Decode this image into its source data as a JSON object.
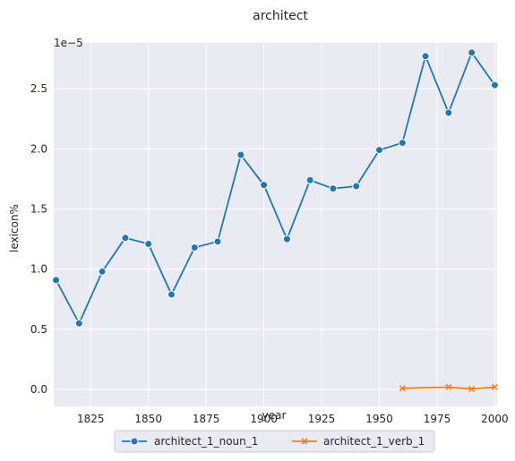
{
  "chart_data": {
    "type": "line",
    "title": "architect",
    "xlabel": "year",
    "ylabel": "lexicon%",
    "y_offset_label": "1e−5",
    "xlim": [
      1809,
      2001
    ],
    "ylim": [
      -0.14,
      2.88
    ],
    "x_ticks": [
      1825,
      1850,
      1875,
      1900,
      1925,
      1950,
      1975,
      2000
    ],
    "y_ticks": [
      0.0,
      0.5,
      1.0,
      1.5,
      2.0,
      2.5
    ],
    "y_tick_labels": [
      "0.0",
      "0.5",
      "1.0",
      "1.5",
      "2.0",
      "2.5"
    ],
    "grid": true,
    "legend_position": "bottom-center",
    "series": [
      {
        "name": "architect_1_noun_1",
        "color": "#1f77b4",
        "marker": "circle",
        "x": [
          1810,
          1820,
          1830,
          1840,
          1850,
          1860,
          1870,
          1880,
          1890,
          1900,
          1910,
          1920,
          1930,
          1940,
          1950,
          1960,
          1970,
          1980,
          1990,
          2000
        ],
        "values": [
          0.91,
          0.55,
          0.98,
          1.26,
          1.21,
          0.79,
          1.18,
          1.23,
          1.95,
          1.7,
          1.25,
          1.74,
          1.67,
          1.69,
          1.99,
          2.05,
          2.77,
          2.3,
          2.8,
          2.53
        ]
      },
      {
        "name": "architect_1_verb_1",
        "color": "#ff7f0e",
        "marker": "x",
        "x": [
          1960,
          1980,
          1990,
          2000
        ],
        "values": [
          0.01,
          0.02,
          0.005,
          0.02
        ]
      }
    ]
  }
}
